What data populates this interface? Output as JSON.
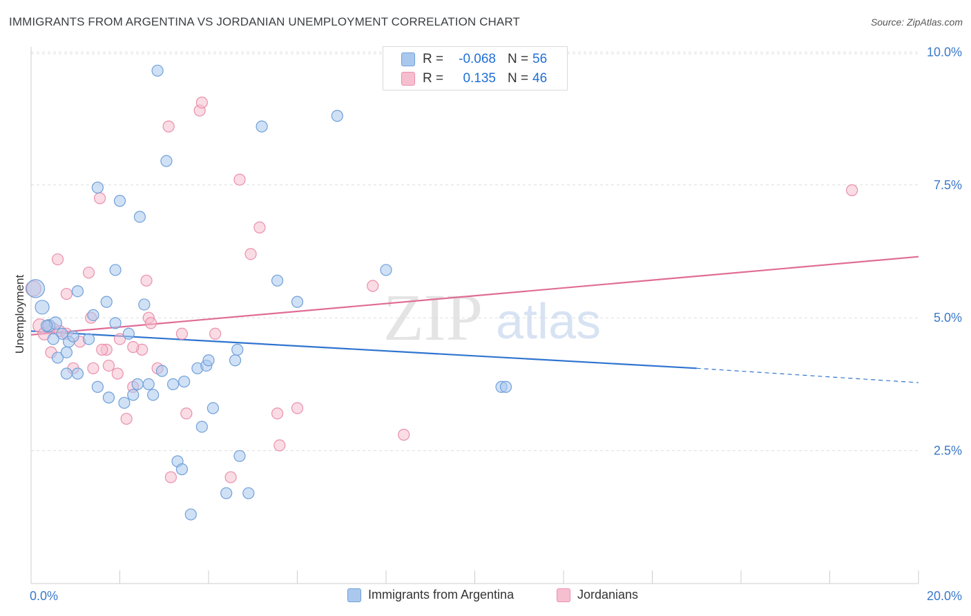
{
  "title": "IMMIGRANTS FROM ARGENTINA VS JORDANIAN UNEMPLOYMENT CORRELATION CHART",
  "source": "Source: ZipAtlas.com",
  "watermark": {
    "zip": "ZIP",
    "atlas": "atlas"
  },
  "colors": {
    "blue_fill": "#aac8ee",
    "blue_stroke": "#6f9fd8",
    "blue_line": "#2f74cf",
    "pink_fill": "#f6bfd0",
    "pink_stroke": "#e98fac",
    "pink_line": "#e06c95",
    "axis_text": "#3a78c9",
    "grid": "#dddddd"
  },
  "stats": [
    {
      "r_label": "R =",
      "r_value": "-0.068",
      "n_label": "N =",
      "n_value": "56"
    },
    {
      "r_label": "R =",
      "r_value": "0.135",
      "n_label": "N =",
      "n_value": "46"
    }
  ],
  "legend": [
    "Immigrants from Argentina",
    "Jordanians"
  ],
  "chart_data": {
    "type": "scatter",
    "title": "IMMIGRANTS FROM ARGENTINA VS JORDANIAN UNEMPLOYMENT CORRELATION CHART",
    "xlabel": "",
    "ylabel": "Unemployment",
    "xlim": [
      0,
      20
    ],
    "ylim": [
      0,
      10.2
    ],
    "x_tick_labels": [
      "0.0%",
      "20.0%"
    ],
    "y_ticks": [
      2.5,
      5.0,
      7.5,
      10.0
    ],
    "y_tick_labels": [
      "2.5%",
      "5.0%",
      "7.5%",
      "10.0%"
    ],
    "grid": true,
    "legend_position": "bottom",
    "series": [
      {
        "name": "Immigrants from Argentina",
        "color": "#aac8ee",
        "trend": {
          "x": [
            0,
            15.0
          ],
          "y": [
            4.75,
            4.05
          ],
          "dashed_to": [
            20.0,
            3.78
          ]
        },
        "points": [
          [
            0.1,
            5.55,
            13
          ],
          [
            0.25,
            5.2,
            10
          ],
          [
            0.4,
            4.85,
            9
          ],
          [
            0.55,
            4.9,
            9
          ],
          [
            0.7,
            4.7,
            8
          ],
          [
            0.85,
            4.55,
            8
          ],
          [
            0.6,
            4.25,
            8
          ],
          [
            0.8,
            4.35,
            8
          ],
          [
            0.95,
            4.65,
            8
          ],
          [
            0.8,
            3.95,
            8
          ],
          [
            1.05,
            3.95,
            8
          ],
          [
            1.05,
            5.5,
            8
          ],
          [
            1.4,
            5.05,
            8
          ],
          [
            1.7,
            5.3,
            8
          ],
          [
            1.9,
            4.9,
            8
          ],
          [
            2.2,
            4.7,
            8
          ],
          [
            2.55,
            5.25,
            8
          ],
          [
            1.5,
            3.7,
            8
          ],
          [
            1.75,
            3.5,
            8
          ],
          [
            2.1,
            3.4,
            8
          ],
          [
            2.3,
            3.55,
            8
          ],
          [
            2.4,
            3.75,
            8
          ],
          [
            2.65,
            3.75,
            8
          ],
          [
            2.75,
            3.55,
            8
          ],
          [
            2.95,
            4.0,
            8
          ],
          [
            3.2,
            3.75,
            8
          ],
          [
            3.45,
            3.8,
            8
          ],
          [
            3.75,
            4.05,
            8
          ],
          [
            3.95,
            4.1,
            8
          ],
          [
            4.0,
            4.2,
            8
          ],
          [
            4.1,
            3.3,
            8
          ],
          [
            3.85,
            2.95,
            8
          ],
          [
            3.3,
            2.3,
            8
          ],
          [
            3.4,
            2.15,
            8
          ],
          [
            3.6,
            1.3,
            8
          ],
          [
            4.4,
            1.7,
            8
          ],
          [
            4.9,
            1.7,
            8
          ],
          [
            4.7,
            2.4,
            8
          ],
          [
            4.6,
            4.2,
            8
          ],
          [
            4.65,
            4.4,
            8
          ],
          [
            1.5,
            7.45,
            8
          ],
          [
            2.0,
            7.2,
            8
          ],
          [
            2.45,
            6.9,
            8
          ],
          [
            1.9,
            5.9,
            8
          ],
          [
            2.85,
            9.65,
            8
          ],
          [
            3.05,
            7.95,
            8
          ],
          [
            5.2,
            8.6,
            8
          ],
          [
            5.55,
            5.7,
            8
          ],
          [
            6.0,
            5.3,
            8
          ],
          [
            6.9,
            8.8,
            8
          ],
          [
            8.0,
            5.9,
            8
          ],
          [
            10.6,
            3.7,
            8
          ],
          [
            10.7,
            3.7,
            8
          ],
          [
            0.35,
            4.85,
            8
          ],
          [
            0.5,
            4.6,
            8
          ],
          [
            1.3,
            4.6,
            8
          ]
        ]
      },
      {
        "name": "Jordanians",
        "color": "#f6bfd0",
        "trend": {
          "x": [
            0,
            20.0
          ],
          "y": [
            4.68,
            6.15
          ]
        },
        "points": [
          [
            0.05,
            5.55,
            11
          ],
          [
            0.2,
            4.85,
            10
          ],
          [
            0.3,
            4.7,
            9
          ],
          [
            0.5,
            4.8,
            8
          ],
          [
            0.65,
            4.75,
            8
          ],
          [
            0.45,
            4.35,
            8
          ],
          [
            0.8,
            4.7,
            8
          ],
          [
            0.95,
            4.05,
            8
          ],
          [
            1.1,
            4.55,
            8
          ],
          [
            0.6,
            6.1,
            8
          ],
          [
            0.8,
            5.45,
            8
          ],
          [
            1.3,
            5.85,
            8
          ],
          [
            1.35,
            5.0,
            8
          ],
          [
            1.55,
            7.25,
            8
          ],
          [
            1.7,
            4.4,
            8
          ],
          [
            1.75,
            4.1,
            8
          ],
          [
            1.95,
            3.95,
            8
          ],
          [
            2.0,
            4.6,
            8
          ],
          [
            2.15,
            3.1,
            8
          ],
          [
            2.3,
            3.7,
            8
          ],
          [
            2.5,
            4.4,
            8
          ],
          [
            2.6,
            5.7,
            8
          ],
          [
            2.65,
            5.0,
            8
          ],
          [
            2.7,
            4.9,
            8
          ],
          [
            2.85,
            4.05,
            8
          ],
          [
            1.4,
            4.05,
            8
          ],
          [
            3.1,
            8.6,
            8
          ],
          [
            3.15,
            2.0,
            8
          ],
          [
            3.4,
            4.7,
            8
          ],
          [
            3.5,
            3.2,
            8
          ],
          [
            3.8,
            8.9,
            8
          ],
          [
            3.85,
            9.05,
            8
          ],
          [
            4.15,
            4.7,
            8
          ],
          [
            4.5,
            2.0,
            8
          ],
          [
            4.7,
            7.6,
            8
          ],
          [
            4.95,
            6.2,
            8
          ],
          [
            5.15,
            6.7,
            8
          ],
          [
            5.55,
            3.2,
            8
          ],
          [
            5.6,
            2.6,
            8
          ],
          [
            6.0,
            3.3,
            8
          ],
          [
            7.7,
            5.6,
            8
          ],
          [
            8.4,
            2.8,
            8
          ],
          [
            18.5,
            7.4,
            8
          ],
          [
            2.3,
            4.45,
            8
          ],
          [
            1.6,
            4.4,
            8
          ],
          [
            0.4,
            4.85,
            8
          ]
        ]
      }
    ]
  }
}
